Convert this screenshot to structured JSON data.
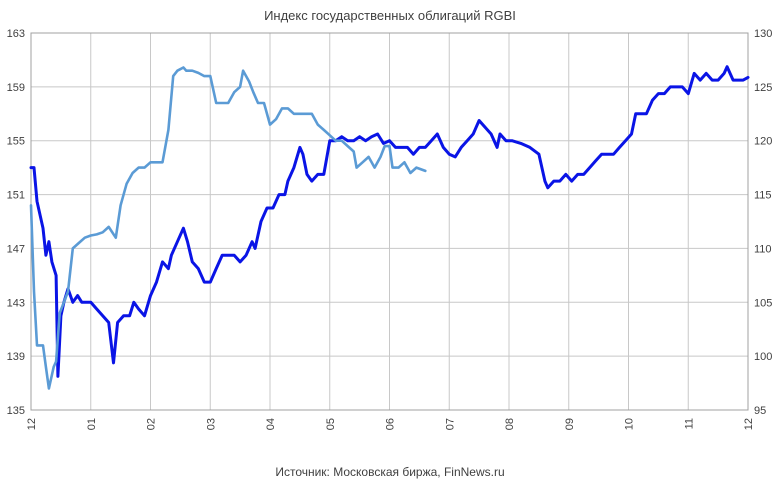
{
  "chart_data": {
    "type": "line",
    "title": "Индекс государственных облигаций RGBI",
    "source": "Источник: Московская биржа, FinNews.ru",
    "x_ticks": [
      "12",
      "01",
      "02",
      "03",
      "04",
      "05",
      "06",
      "07",
      "08",
      "09",
      "10",
      "11",
      "12"
    ],
    "xlim": [
      0,
      12
    ],
    "y_left": {
      "ylim": [
        135,
        163
      ],
      "ticks": [
        "135",
        "139",
        "143",
        "147",
        "151",
        "155",
        "159",
        "163"
      ]
    },
    "y_right": {
      "ylim": [
        95,
        130
      ],
      "ticks": [
        "95",
        "100",
        "105",
        "110",
        "115",
        "120",
        "125",
        "130"
      ]
    },
    "grid": true,
    "legend": "none",
    "series": [
      {
        "axis": "left",
        "color": "#0a14e6",
        "points": [
          [
            0.0,
            153.0
          ],
          [
            0.05,
            153.0
          ],
          [
            0.1,
            150.5
          ],
          [
            0.2,
            148.5
          ],
          [
            0.25,
            146.5
          ],
          [
            0.3,
            147.5
          ],
          [
            0.35,
            146.0
          ],
          [
            0.42,
            145.0
          ],
          [
            0.45,
            137.5
          ],
          [
            0.5,
            142.0
          ],
          [
            0.55,
            143.0
          ],
          [
            0.62,
            144.0
          ],
          [
            0.7,
            143.0
          ],
          [
            0.78,
            143.5
          ],
          [
            0.85,
            143.0
          ],
          [
            1.0,
            143.0
          ],
          [
            1.1,
            142.5
          ],
          [
            1.3,
            141.5
          ],
          [
            1.38,
            138.5
          ],
          [
            1.45,
            141.5
          ],
          [
            1.55,
            142.0
          ],
          [
            1.65,
            142.0
          ],
          [
            1.72,
            143.0
          ],
          [
            1.8,
            142.5
          ],
          [
            1.9,
            142.0
          ],
          [
            2.0,
            143.5
          ],
          [
            2.1,
            144.5
          ],
          [
            2.2,
            146.0
          ],
          [
            2.3,
            145.5
          ],
          [
            2.35,
            146.5
          ],
          [
            2.45,
            147.5
          ],
          [
            2.55,
            148.5
          ],
          [
            2.62,
            147.5
          ],
          [
            2.7,
            146.0
          ],
          [
            2.8,
            145.5
          ],
          [
            2.9,
            144.5
          ],
          [
            3.0,
            144.5
          ],
          [
            3.1,
            145.5
          ],
          [
            3.2,
            146.5
          ],
          [
            3.3,
            146.5
          ],
          [
            3.4,
            146.5
          ],
          [
            3.5,
            146.0
          ],
          [
            3.6,
            146.5
          ],
          [
            3.7,
            147.5
          ],
          [
            3.75,
            147.0
          ],
          [
            3.85,
            149.0
          ],
          [
            3.95,
            150.0
          ],
          [
            4.05,
            150.0
          ],
          [
            4.15,
            151.0
          ],
          [
            4.25,
            151.0
          ],
          [
            4.3,
            152.0
          ],
          [
            4.4,
            153.0
          ],
          [
            4.5,
            154.5
          ],
          [
            4.55,
            154.0
          ],
          [
            4.62,
            152.5
          ],
          [
            4.7,
            152.0
          ],
          [
            4.8,
            152.5
          ],
          [
            4.9,
            152.5
          ],
          [
            5.0,
            155.0
          ],
          [
            5.1,
            155.0
          ],
          [
            5.2,
            155.3
          ],
          [
            5.3,
            155.0
          ],
          [
            5.4,
            155.0
          ],
          [
            5.5,
            155.3
          ],
          [
            5.6,
            155.0
          ],
          [
            5.7,
            155.3
          ],
          [
            5.8,
            155.5
          ],
          [
            5.9,
            154.8
          ],
          [
            6.0,
            155.0
          ],
          [
            6.1,
            154.5
          ],
          [
            6.2,
            154.5
          ],
          [
            6.3,
            154.5
          ],
          [
            6.4,
            154.0
          ],
          [
            6.5,
            154.5
          ],
          [
            6.6,
            154.5
          ],
          [
            6.7,
            155.0
          ],
          [
            6.8,
            155.5
          ],
          [
            6.9,
            154.5
          ],
          [
            7.0,
            154.0
          ],
          [
            7.1,
            153.8
          ],
          [
            7.2,
            154.5
          ],
          [
            7.3,
            155.0
          ],
          [
            7.4,
            155.5
          ],
          [
            7.5,
            156.5
          ],
          [
            7.6,
            156.0
          ],
          [
            7.7,
            155.5
          ],
          [
            7.8,
            154.5
          ],
          [
            7.85,
            155.5
          ],
          [
            7.95,
            155.0
          ],
          [
            8.05,
            155.0
          ],
          [
            8.2,
            154.8
          ],
          [
            8.35,
            154.5
          ],
          [
            8.5,
            154.0
          ],
          [
            8.6,
            152.0
          ],
          [
            8.65,
            151.5
          ],
          [
            8.75,
            152.0
          ],
          [
            8.85,
            152.0
          ],
          [
            8.95,
            152.5
          ],
          [
            9.05,
            152.0
          ],
          [
            9.15,
            152.5
          ],
          [
            9.25,
            152.5
          ],
          [
            9.35,
            153.0
          ],
          [
            9.45,
            153.5
          ],
          [
            9.55,
            154.0
          ],
          [
            9.65,
            154.0
          ],
          [
            9.75,
            154.0
          ],
          [
            9.85,
            154.5
          ],
          [
            9.95,
            155.0
          ],
          [
            10.05,
            155.5
          ],
          [
            10.12,
            157.0
          ],
          [
            10.2,
            157.0
          ],
          [
            10.3,
            157.0
          ],
          [
            10.4,
            158.0
          ],
          [
            10.5,
            158.5
          ],
          [
            10.6,
            158.5
          ],
          [
            10.7,
            159.0
          ],
          [
            10.8,
            159.0
          ],
          [
            10.9,
            159.0
          ],
          [
            11.0,
            158.5
          ],
          [
            11.1,
            160.0
          ],
          [
            11.2,
            159.5
          ],
          [
            11.3,
            160.0
          ],
          [
            11.4,
            159.5
          ],
          [
            11.5,
            159.5
          ],
          [
            11.6,
            160.0
          ],
          [
            11.65,
            160.5
          ],
          [
            11.75,
            159.5
          ],
          [
            11.85,
            159.5
          ],
          [
            11.92,
            159.5
          ],
          [
            12.0,
            159.7
          ]
        ]
      },
      {
        "axis": "right",
        "color": "#5b9bd5",
        "points": [
          [
            0.0,
            114.0
          ],
          [
            0.05,
            106.0
          ],
          [
            0.1,
            101.0
          ],
          [
            0.2,
            101.0
          ],
          [
            0.25,
            99.0
          ],
          [
            0.3,
            97.0
          ],
          [
            0.38,
            99.0
          ],
          [
            0.42,
            99.5
          ],
          [
            0.48,
            104.0
          ],
          [
            0.55,
            105.0
          ],
          [
            0.62,
            106.0
          ],
          [
            0.7,
            110.0
          ],
          [
            0.8,
            110.5
          ],
          [
            0.9,
            111.0
          ],
          [
            1.0,
            111.2
          ],
          [
            1.1,
            111.3
          ],
          [
            1.2,
            111.5
          ],
          [
            1.3,
            112.0
          ],
          [
            1.42,
            111.0
          ],
          [
            1.5,
            114.0
          ],
          [
            1.6,
            116.0
          ],
          [
            1.7,
            117.0
          ],
          [
            1.8,
            117.5
          ],
          [
            1.9,
            117.5
          ],
          [
            2.0,
            118.0
          ],
          [
            2.1,
            118.0
          ],
          [
            2.2,
            118.0
          ],
          [
            2.3,
            121.0
          ],
          [
            2.38,
            126.0
          ],
          [
            2.45,
            126.5
          ],
          [
            2.55,
            126.8
          ],
          [
            2.6,
            126.5
          ],
          [
            2.7,
            126.5
          ],
          [
            2.8,
            126.3
          ],
          [
            2.9,
            126.0
          ],
          [
            3.0,
            126.0
          ],
          [
            3.1,
            123.5
          ],
          [
            3.2,
            123.5
          ],
          [
            3.3,
            123.5
          ],
          [
            3.4,
            124.5
          ],
          [
            3.5,
            125.0
          ],
          [
            3.55,
            126.5
          ],
          [
            3.65,
            125.5
          ],
          [
            3.72,
            124.5
          ],
          [
            3.8,
            123.5
          ],
          [
            3.9,
            123.5
          ],
          [
            4.0,
            121.5
          ],
          [
            4.1,
            122.0
          ],
          [
            4.2,
            123.0
          ],
          [
            4.3,
            123.0
          ],
          [
            4.4,
            122.5
          ],
          [
            4.5,
            122.5
          ],
          [
            4.6,
            122.5
          ],
          [
            4.7,
            122.5
          ],
          [
            4.8,
            121.5
          ],
          [
            4.9,
            121.0
          ],
          [
            5.0,
            120.5
          ],
          [
            5.1,
            120.0
          ],
          [
            5.2,
            120.0
          ],
          [
            5.3,
            119.5
          ],
          [
            5.4,
            119.0
          ],
          [
            5.45,
            117.5
          ],
          [
            5.55,
            118.0
          ],
          [
            5.65,
            118.5
          ],
          [
            5.75,
            117.5
          ],
          [
            5.85,
            118.5
          ],
          [
            5.92,
            119.5
          ],
          [
            6.0,
            119.5
          ],
          [
            6.05,
            117.5
          ],
          [
            6.15,
            117.5
          ],
          [
            6.25,
            118.0
          ],
          [
            6.3,
            117.5
          ],
          [
            6.35,
            117.0
          ],
          [
            6.45,
            117.5
          ],
          [
            6.6,
            117.2
          ]
        ]
      }
    ]
  }
}
